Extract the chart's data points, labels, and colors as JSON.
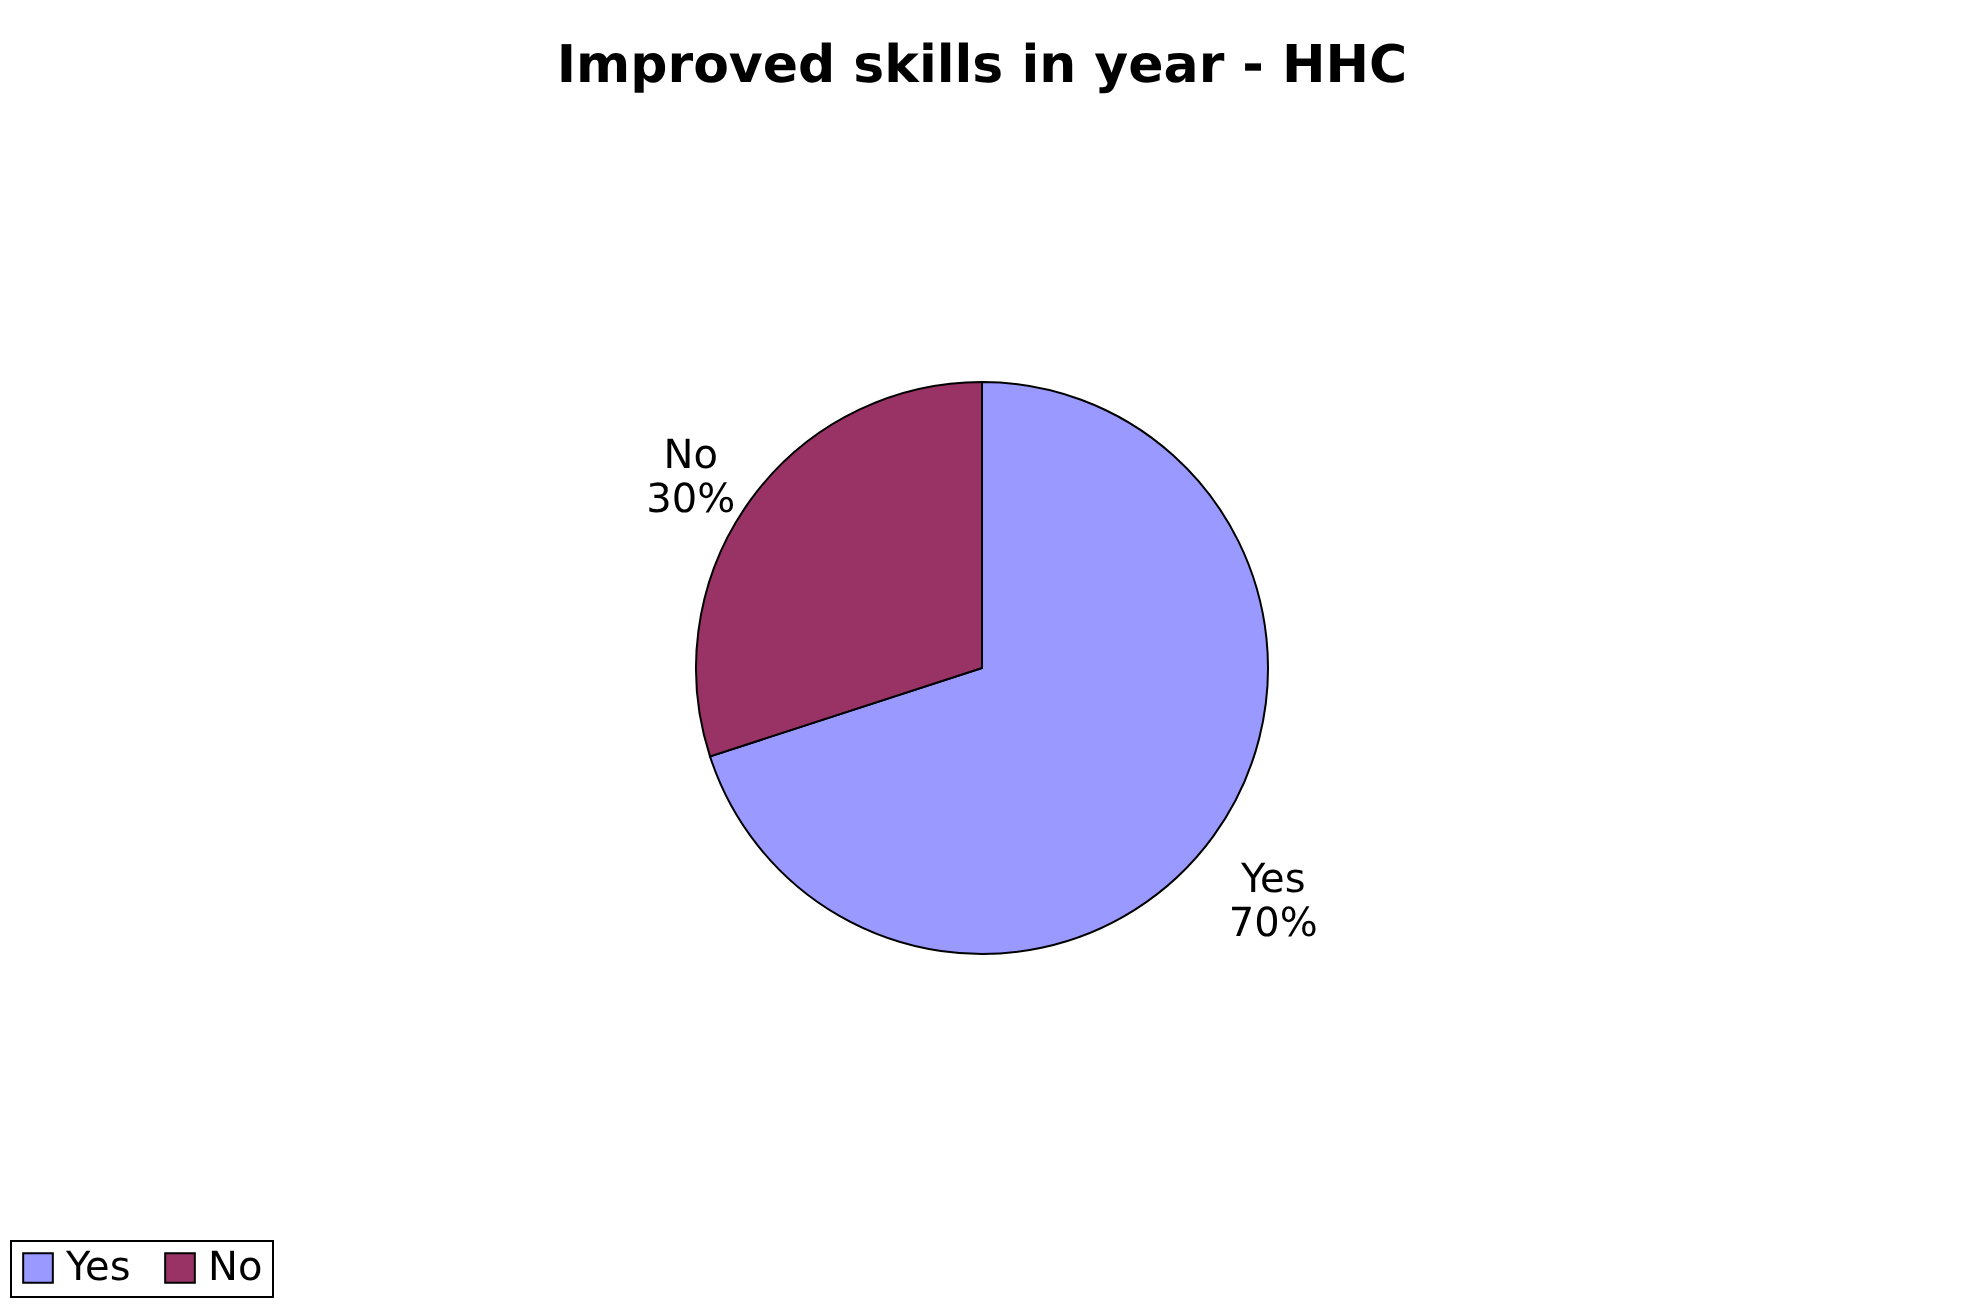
{
  "chart_data": {
    "type": "pie",
    "title": "Improved skills in year - HHC",
    "categories": [
      "Yes",
      "No"
    ],
    "values": [
      70,
      30
    ],
    "colors": [
      "#9999ff",
      "#993366"
    ],
    "value_labels": [
      "70%",
      "30%"
    ],
    "legend": "bottom"
  }
}
